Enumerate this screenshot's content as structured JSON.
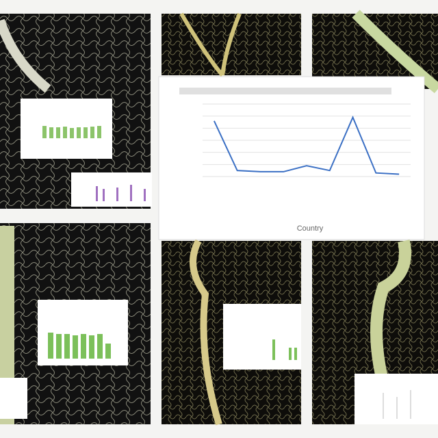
{
  "chart_data": {
    "type": "line",
    "x_label": "Country",
    "series": [
      {
        "color": "#3a6fc4",
        "values": [
          4.6,
          0.5,
          0.4,
          0.4,
          0.9,
          0.5,
          4.9,
          0.3,
          0.2
        ]
      }
    ],
    "ylim": [
      0,
      6
    ],
    "yticks": [
      0,
      1,
      2,
      3,
      4,
      5,
      6
    ],
    "grid": true
  }
}
